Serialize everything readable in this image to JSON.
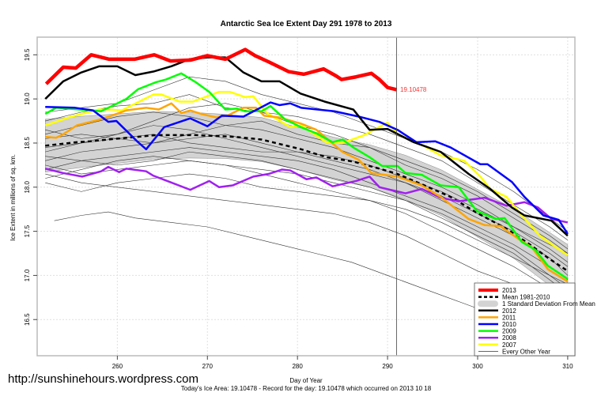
{
  "chart_data": {
    "type": "line",
    "title": "Antarctic Sea Ice Extent Day 291 1978 to 2013",
    "xlabel": "Day of Year",
    "ylabel": "Ice Extent in millions of sq. km.",
    "xlim": [
      251.1,
      310.8
    ],
    "ylim": [
      16.09,
      19.7
    ],
    "xticks": [
      260,
      270,
      280,
      290,
      300,
      310
    ],
    "yticks": [
      16.5,
      17.0,
      17.5,
      18.0,
      18.5,
      19.0,
      19.5
    ],
    "ytick_labels": [
      "16.5",
      "17.0",
      "17.5",
      "18.0",
      "18.5",
      "19.0",
      "19.5"
    ],
    "grid": true,
    "legend_position": "bottom-right",
    "current_day_marker": 291,
    "current_value_label": "19.10478",
    "footer": "Today's Ice Area: 19.10478  - Record for the day: 19.10478 which occurred on 2013 10 18",
    "watermark": "http://sunshinehours.wordpress.com",
    "legend": [
      "2013",
      "Mean 1981-2010",
      "1 Standard Deviation From Mean",
      "2012",
      "2011",
      "2010",
      "2009",
      "2008",
      "2007",
      "Every Other Year"
    ],
    "band": {
      "name": "1 Standard Deviation From Mean",
      "color": "#d3d3d3",
      "x": [
        252,
        256,
        260,
        264,
        268,
        272,
        276,
        280,
        284,
        288,
        292,
        296,
        300,
        304,
        308,
        310
      ],
      "sd": [
        0.3,
        0.29,
        0.28,
        0.27,
        0.26,
        0.25,
        0.25,
        0.24,
        0.24,
        0.24,
        0.25,
        0.26,
        0.27,
        0.28,
        0.3,
        0.3
      ]
    },
    "mean": {
      "name": "Mean 1981-2010",
      "color": "#000000",
      "x": [
        252,
        255.5,
        257,
        260,
        264.3,
        268.7,
        273.1,
        276,
        280.4,
        283.2,
        286.2,
        289.1,
        291.1,
        294.1,
        297,
        299.9,
        303.2,
        305.8,
        307.8,
        310
      ],
      "y": [
        18.47,
        18.51,
        18.52,
        18.55,
        18.59,
        18.59,
        18.57,
        18.54,
        18.43,
        18.34,
        18.29,
        18.21,
        18.15,
        18.02,
        17.89,
        17.71,
        17.53,
        17.35,
        17.2,
        17.05
      ]
    },
    "series": [
      {
        "name": "2013",
        "color": "#ff0000",
        "x": [
          252.1,
          254,
          255.4,
          257.1,
          259.1,
          261.9,
          264.1,
          265.9,
          268.1,
          270,
          272,
          274.2,
          275.3,
          276.8,
          279,
          280.7,
          282.9,
          284.3,
          284.9,
          286.5,
          288.2,
          289.1,
          290,
          291
        ],
        "y": [
          19.17,
          19.36,
          19.35,
          19.5,
          19.45,
          19.45,
          19.5,
          19.43,
          19.44,
          19.49,
          19.45,
          19.56,
          19.49,
          19.42,
          19.31,
          19.28,
          19.34,
          19.26,
          19.22,
          19.25,
          19.29,
          19.22,
          19.13,
          19.10478
        ]
      },
      {
        "name": "2012",
        "color": "#000000",
        "x": [
          252,
          254,
          256,
          258,
          260,
          262,
          264,
          266,
          268,
          270,
          272,
          274,
          276,
          278,
          280.35,
          283,
          286.2,
          288,
          290,
          292.9,
          295.9,
          299,
          301.4,
          303.8,
          305.2,
          308.2,
          310
        ],
        "y": [
          19.0,
          19.2,
          19.3,
          19.37,
          19.37,
          19.27,
          19.31,
          19.37,
          19.45,
          19.47,
          19.47,
          19.3,
          19.2,
          19.2,
          19.06,
          18.97,
          18.88,
          18.65,
          18.66,
          18.51,
          18.4,
          18.15,
          17.98,
          17.77,
          17.68,
          17.62,
          17.45
        ]
      },
      {
        "name": "2011",
        "color": "#ffa500",
        "x": [
          252,
          253.2,
          254,
          255.5,
          258.2,
          261,
          263.2,
          264.6,
          266,
          267.1,
          268.1,
          269.3,
          271,
          272.2,
          274,
          275.4,
          276.3,
          278,
          280.4,
          282.1,
          285,
          286.8,
          288.2,
          291.1,
          293.8,
          295.9,
          299,
          300.8,
          302.5,
          304.6,
          306,
          307.8,
          310
        ],
        "y": [
          18.57,
          18.56,
          18.6,
          18.7,
          18.77,
          18.87,
          18.9,
          18.88,
          18.95,
          18.84,
          18.87,
          18.83,
          18.79,
          18.81,
          18.9,
          18.9,
          18.81,
          18.79,
          18.72,
          18.65,
          18.4,
          18.31,
          18.16,
          18.12,
          18.02,
          17.89,
          17.64,
          17.57,
          17.56,
          17.41,
          17.32,
          17.07,
          16.93
        ]
      },
      {
        "name": "2010",
        "color": "#0000ff",
        "x": [
          252,
          255.3,
          257.3,
          259,
          259.9,
          262.3,
          263.2,
          265.2,
          268.1,
          270,
          271.6,
          274,
          277,
          278,
          279.2,
          280.4,
          284.1,
          286.8,
          289.1,
          291.1,
          293.2,
          295.3,
          297,
          300.3,
          301.1,
          303.8,
          305.2,
          307.3,
          309,
          310
        ],
        "y": [
          18.91,
          18.9,
          18.87,
          18.74,
          18.75,
          18.51,
          18.43,
          18.68,
          18.78,
          18.69,
          18.81,
          18.8,
          18.96,
          18.93,
          18.95,
          18.9,
          18.86,
          18.8,
          18.74,
          18.65,
          18.51,
          18.52,
          18.45,
          18.26,
          18.26,
          18.06,
          17.89,
          17.68,
          17.63,
          17.47
        ]
      },
      {
        "name": "2009",
        "color": "#00ff00",
        "x": [
          252,
          253.2,
          257,
          258.2,
          260,
          261,
          262.3,
          264.3,
          265.4,
          267.1,
          268.7,
          270.2,
          272,
          273.3,
          274.2,
          276,
          277,
          278.6,
          280.4,
          282.1,
          283.9,
          285,
          286.2,
          288,
          289.4,
          291.1,
          292,
          293.8,
          295.9,
          297.9,
          299.9,
          302,
          303,
          304.9,
          306.4,
          307.8,
          310
        ],
        "y": [
          18.83,
          18.9,
          18.87,
          18.86,
          18.95,
          19.0,
          19.11,
          19.19,
          19.22,
          19.29,
          19.19,
          19.08,
          18.88,
          18.89,
          18.86,
          18.86,
          18.92,
          18.77,
          18.68,
          18.61,
          18.51,
          18.54,
          18.45,
          18.34,
          18.24,
          18.24,
          18.16,
          18.14,
          18.02,
          18.0,
          17.73,
          17.64,
          17.65,
          17.38,
          17.29,
          17.11,
          16.96
        ]
      },
      {
        "name": "2008",
        "color": "#a020f0",
        "x": [
          252,
          254,
          256.1,
          258.2,
          259,
          260.2,
          261,
          263.2,
          264,
          265.8,
          268.1,
          270.2,
          271.3,
          272.8,
          275.1,
          276.8,
          278.3,
          279.2,
          281,
          282.1,
          283.9,
          286.5,
          288,
          289.1,
          290.3,
          292,
          293.8,
          295.9,
          297.9,
          300.8,
          303.2,
          305.2,
          306.7,
          308.2,
          310
        ],
        "y": [
          18.21,
          18.16,
          18.12,
          18.18,
          18.23,
          18.17,
          18.21,
          18.18,
          18.13,
          18.06,
          17.97,
          18.07,
          18.0,
          18.02,
          18.12,
          18.15,
          18.2,
          18.19,
          18.09,
          18.11,
          18.01,
          18.07,
          18.12,
          18.0,
          17.97,
          17.93,
          17.98,
          17.88,
          17.84,
          17.88,
          17.79,
          17.83,
          17.77,
          17.64,
          17.6
        ]
      },
      {
        "name": "2007",
        "color": "#ffff00",
        "x": [
          252,
          254.6,
          257.9,
          259,
          260.5,
          264,
          264.9,
          266.9,
          268.4,
          271.3,
          272.5,
          274.2,
          275.1,
          276.6,
          279.2,
          280.4,
          283.2,
          285,
          287.4,
          290,
          291.1,
          293.8,
          295.9,
          298.5,
          300.3,
          301.4,
          303.2,
          304.9,
          306.9,
          308.4,
          310
        ],
        "y": [
          18.7,
          18.79,
          18.88,
          18.88,
          18.87,
          19.05,
          19.05,
          18.97,
          18.97,
          19.08,
          19.08,
          19.02,
          19.03,
          18.84,
          18.68,
          18.7,
          18.51,
          18.5,
          18.59,
          18.73,
          18.6,
          18.48,
          18.36,
          18.3,
          18.12,
          17.98,
          17.89,
          17.68,
          17.45,
          17.34,
          17.23
        ]
      }
    ],
    "other_years": {
      "name": "Every Other Year",
      "color": "#000000",
      "x": [
        252,
        256,
        260,
        264,
        268,
        272,
        276,
        280,
        284,
        288,
        292,
        296,
        300,
        304,
        308,
        310
      ],
      "lines": [
        [
          18.75,
          18.85,
          18.92,
          18.95,
          19.05,
          18.9,
          18.85,
          18.7,
          18.6,
          18.45,
          18.25,
          18.1,
          17.9,
          17.65,
          17.4,
          17.25
        ],
        [
          18.6,
          18.7,
          18.8,
          18.85,
          18.8,
          18.7,
          18.65,
          18.55,
          18.45,
          18.3,
          18.15,
          18.0,
          17.8,
          17.55,
          17.3,
          17.15
        ],
        [
          18.45,
          18.5,
          18.6,
          18.7,
          18.65,
          18.55,
          18.45,
          18.35,
          18.25,
          18.15,
          18.05,
          17.85,
          17.65,
          17.45,
          17.2,
          17.0
        ],
        [
          18.3,
          18.4,
          18.45,
          18.5,
          18.55,
          18.6,
          18.5,
          18.4,
          18.3,
          18.2,
          18.05,
          17.9,
          17.7,
          17.5,
          17.25,
          17.1
        ],
        [
          18.2,
          18.3,
          18.35,
          18.4,
          18.45,
          18.4,
          18.35,
          18.3,
          18.2,
          18.05,
          17.9,
          17.75,
          17.55,
          17.35,
          17.1,
          16.95
        ],
        [
          18.1,
          18.2,
          18.3,
          18.35,
          18.3,
          18.25,
          18.2,
          18.15,
          18.05,
          17.95,
          17.85,
          17.7,
          17.5,
          17.3,
          17.0,
          16.85
        ],
        [
          18.55,
          18.6,
          18.55,
          18.5,
          18.6,
          18.7,
          18.75,
          18.6,
          18.5,
          18.45,
          18.3,
          18.15,
          17.95,
          17.7,
          17.45,
          17.3
        ],
        [
          18.35,
          18.3,
          18.25,
          18.3,
          18.4,
          18.35,
          18.3,
          18.2,
          18.1,
          18.0,
          17.85,
          17.65,
          17.45,
          17.25,
          16.95,
          16.8
        ],
        [
          18.15,
          18.05,
          18.0,
          17.95,
          17.9,
          17.85,
          17.8,
          17.75,
          17.7,
          17.6,
          17.45,
          17.25,
          17.05,
          16.9,
          16.7,
          16.6
        ],
        [
          18.05,
          17.95,
          18.05,
          18.1,
          18.15,
          18.1,
          18.0,
          17.95,
          17.9,
          17.85,
          17.75,
          17.6,
          17.4,
          17.2,
          17.0,
          16.9
        ],
        [
          18.85,
          18.9,
          18.95,
          19.1,
          19.25,
          19.2,
          19.05,
          18.95,
          18.85,
          18.7,
          18.55,
          18.4,
          18.2,
          17.95,
          17.65,
          17.5
        ],
        [
          18.65,
          18.55,
          18.6,
          18.75,
          18.9,
          18.95,
          18.85,
          18.8,
          18.7,
          18.6,
          18.45,
          18.3,
          18.05,
          17.8,
          17.55,
          17.4
        ],
        [
          18.4,
          18.5,
          18.55,
          18.6,
          18.5,
          18.45,
          18.4,
          18.4,
          18.35,
          18.25,
          18.1,
          17.95,
          17.75,
          17.55,
          17.35,
          17.25
        ],
        [
          18.25,
          18.15,
          18.2,
          18.25,
          18.3,
          18.25,
          18.15,
          18.05,
          17.95,
          17.85,
          17.7,
          17.5,
          17.3,
          17.1,
          16.85,
          16.7
        ]
      ],
      "low_line": {
        "x": [
          253,
          256,
          259,
          262,
          266,
          270,
          274,
          278,
          282,
          286,
          290,
          294,
          298,
          302,
          306,
          308
        ],
        "y": [
          17.62,
          17.68,
          17.72,
          17.65,
          17.6,
          17.55,
          17.45,
          17.35,
          17.25,
          17.15,
          17.0,
          16.85,
          16.7,
          16.55,
          16.35,
          16.2
        ]
      }
    }
  }
}
